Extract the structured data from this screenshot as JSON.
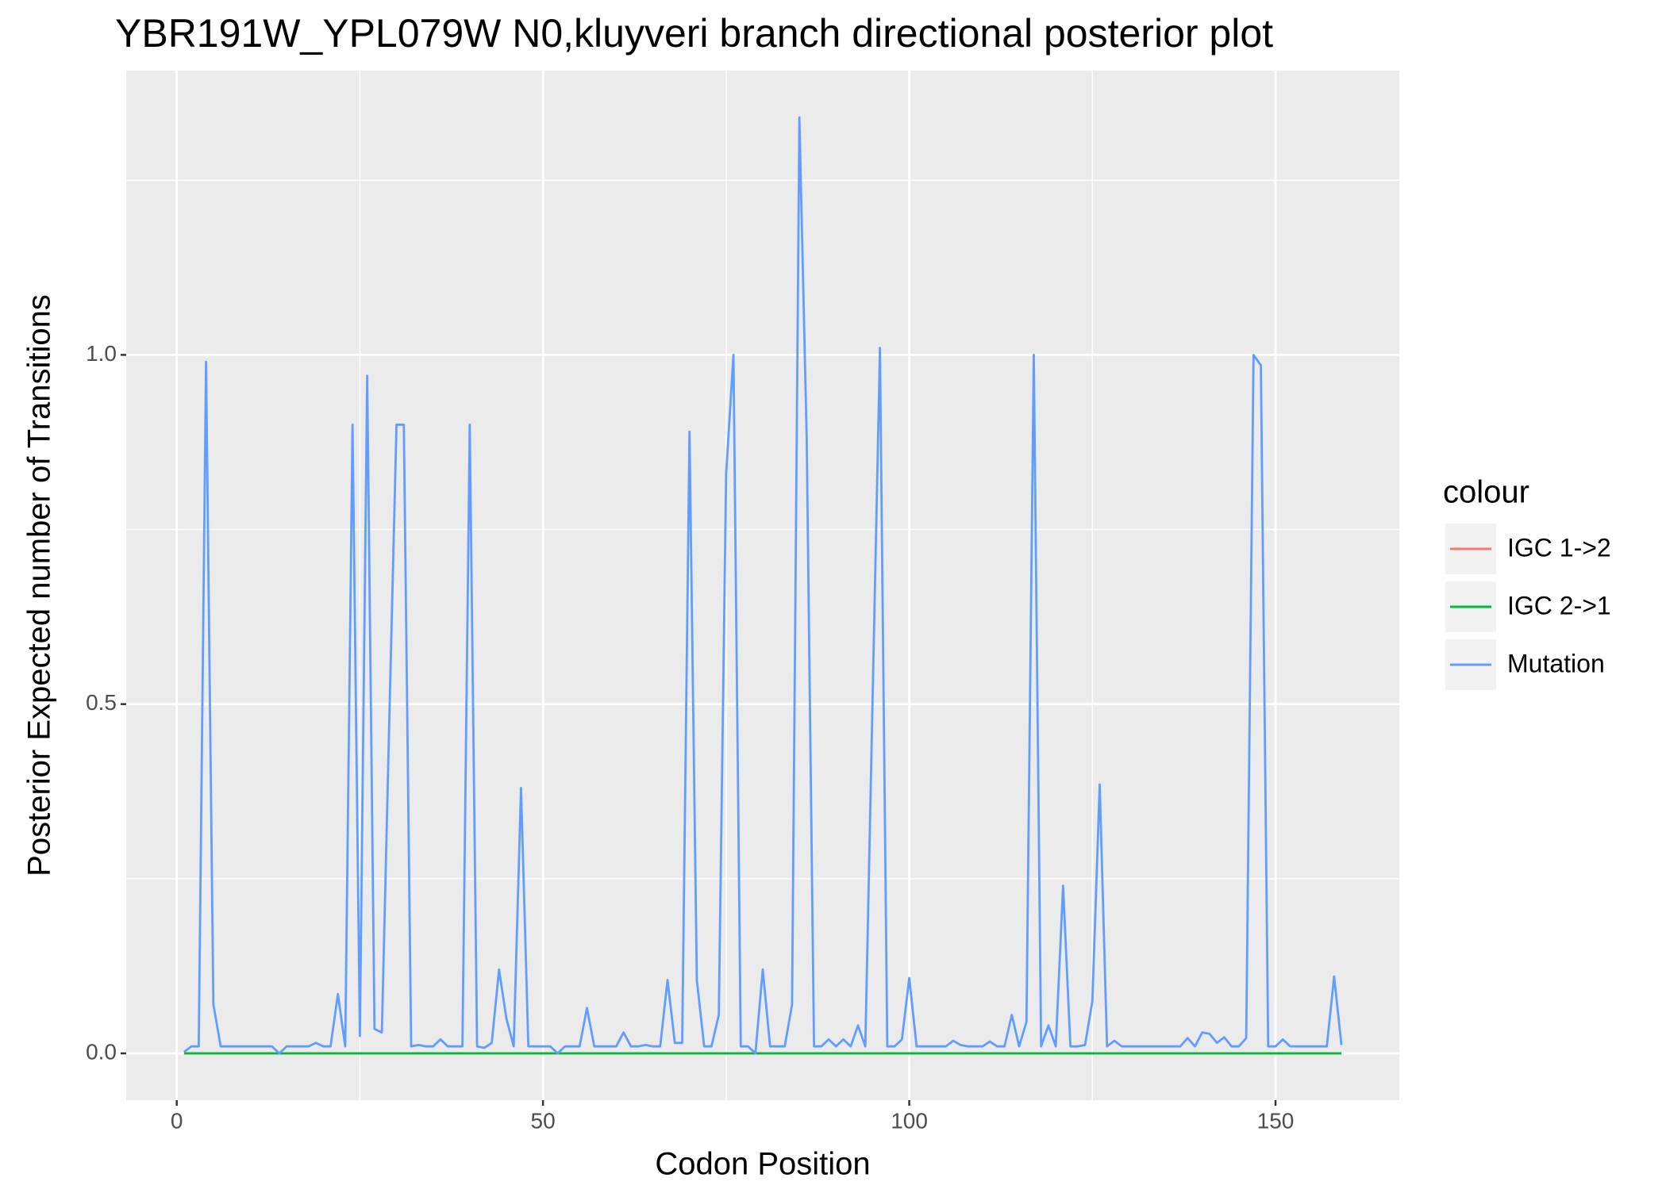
{
  "chart_data": {
    "type": "line",
    "title": "YBR191W_YPL079W N0,kluyveri branch directional posterior plot",
    "x_label": "Codon Position",
    "y_label": "Posterior Expected number of Transitions",
    "legend_title": "colour",
    "legend": "right",
    "grid": true,
    "xlim": [
      -6.9,
      166.9
    ],
    "ylim": [
      -0.067,
      1.407
    ],
    "xticks": [
      0,
      50,
      100,
      150
    ],
    "yticks": [
      {
        "value": 0,
        "label": "0.0"
      },
      {
        "value": 0.5,
        "label": "0.5"
      },
      {
        "value": 1,
        "label": "1.0"
      }
    ],
    "x": [
      1,
      2,
      3,
      4,
      5,
      6,
      7,
      8,
      9,
      10,
      11,
      12,
      13,
      14,
      15,
      16,
      17,
      18,
      19,
      20,
      21,
      22,
      23,
      24,
      25,
      26,
      27,
      28,
      29,
      30,
      31,
      32,
      33,
      34,
      35,
      36,
      37,
      38,
      39,
      40,
      41,
      42,
      43,
      44,
      45,
      46,
      47,
      48,
      49,
      50,
      51,
      52,
      53,
      54,
      55,
      56,
      57,
      58,
      59,
      60,
      61,
      62,
      63,
      64,
      65,
      66,
      67,
      68,
      69,
      70,
      71,
      72,
      73,
      74,
      75,
      76,
      77,
      78,
      79,
      80,
      81,
      82,
      83,
      84,
      85,
      86,
      87,
      88,
      89,
      90,
      91,
      92,
      93,
      94,
      95,
      96,
      97,
      98,
      99,
      100,
      101,
      102,
      103,
      104,
      105,
      106,
      107,
      108,
      109,
      110,
      111,
      112,
      113,
      114,
      115,
      116,
      117,
      118,
      119,
      120,
      121,
      122,
      123,
      124,
      125,
      126,
      127,
      128,
      129,
      130,
      131,
      132,
      133,
      134,
      135,
      136,
      137,
      138,
      139,
      140,
      141,
      142,
      143,
      144,
      145,
      146,
      147,
      148,
      149,
      150,
      151,
      152,
      153,
      154,
      155,
      156,
      157,
      158,
      159
    ],
    "series": [
      {
        "name": "IGC 1->2",
        "color": "#F8766D",
        "values": [
          0,
          0,
          0,
          0,
          0,
          0,
          0,
          0,
          0,
          0,
          0,
          0,
          0,
          0,
          0,
          0,
          0,
          0,
          0,
          0,
          0,
          0,
          0,
          0,
          0,
          0,
          0,
          0,
          0,
          0,
          0,
          0,
          0,
          0,
          0,
          0,
          0,
          0,
          0,
          0,
          0,
          0,
          0,
          0,
          0,
          0,
          0,
          0,
          0,
          0,
          0,
          0,
          0,
          0,
          0,
          0,
          0,
          0,
          0,
          0,
          0,
          0,
          0,
          0,
          0,
          0,
          0,
          0,
          0,
          0,
          0,
          0,
          0,
          0,
          0,
          0,
          0,
          0,
          0,
          0,
          0,
          0,
          0,
          0,
          0,
          0,
          0,
          0,
          0,
          0,
          0,
          0,
          0,
          0,
          0,
          0,
          0,
          0,
          0,
          0,
          0,
          0,
          0,
          0,
          0,
          0,
          0,
          0,
          0,
          0,
          0,
          0,
          0,
          0,
          0,
          0,
          0,
          0,
          0,
          0,
          0,
          0,
          0,
          0,
          0,
          0,
          0,
          0,
          0,
          0,
          0,
          0,
          0,
          0,
          0,
          0,
          0,
          0,
          0,
          0,
          0,
          0,
          0,
          0,
          0,
          0,
          0,
          0,
          0,
          0,
          0,
          0,
          0,
          0,
          0,
          0,
          0,
          0,
          0
        ]
      },
      {
        "name": "IGC 2->1",
        "color": "#00BA38",
        "values": [
          0,
          0,
          0,
          0,
          0,
          0,
          0,
          0,
          0,
          0,
          0,
          0,
          0,
          0,
          0,
          0,
          0,
          0,
          0,
          0,
          0,
          0,
          0,
          0,
          0,
          0,
          0,
          0,
          0,
          0,
          0,
          0,
          0,
          0,
          0,
          0,
          0,
          0,
          0,
          0,
          0,
          0,
          0,
          0,
          0,
          0,
          0,
          0,
          0,
          0,
          0,
          0,
          0,
          0,
          0,
          0,
          0,
          0,
          0,
          0,
          0,
          0,
          0,
          0,
          0,
          0,
          0,
          0,
          0,
          0,
          0,
          0,
          0,
          0,
          0,
          0,
          0,
          0,
          0,
          0,
          0,
          0,
          0,
          0,
          0,
          0,
          0,
          0,
          0,
          0,
          0,
          0,
          0,
          0,
          0,
          0,
          0,
          0,
          0,
          0,
          0,
          0,
          0,
          0,
          0,
          0,
          0,
          0,
          0,
          0,
          0,
          0,
          0,
          0,
          0,
          0,
          0,
          0,
          0,
          0,
          0,
          0,
          0,
          0,
          0,
          0,
          0,
          0,
          0,
          0,
          0,
          0,
          0,
          0,
          0,
          0,
          0,
          0,
          0,
          0,
          0,
          0,
          0,
          0,
          0,
          0,
          0,
          0,
          0,
          0,
          0,
          0,
          0,
          0,
          0,
          0,
          0,
          0,
          0
        ]
      },
      {
        "name": "Mutation",
        "color": "#619CFF",
        "values": [
          0.002,
          0.01,
          0.01,
          0.99,
          0.07,
          0.01,
          0.01,
          0.01,
          0.01,
          0.01,
          0.01,
          0.01,
          0.01,
          0,
          0.01,
          0.01,
          0.01,
          0.01,
          0.015,
          0.01,
          0.01,
          0.085,
          0.01,
          0.9,
          0.025,
          0.97,
          0.035,
          0.03,
          0.47,
          0.9,
          0.9,
          0.01,
          0.012,
          0.01,
          0.01,
          0.02,
          0.01,
          0.01,
          0.01,
          0.9,
          0.01,
          0.008,
          0.015,
          0.12,
          0.05,
          0.01,
          0.38,
          0.01,
          0.01,
          0.01,
          0.01,
          0,
          0.01,
          0.01,
          0.01,
          0.065,
          0.01,
          0.01,
          0.01,
          0.01,
          0.03,
          0.01,
          0.01,
          0.012,
          0.01,
          0.01,
          0.105,
          0.015,
          0.015,
          0.89,
          0.105,
          0.01,
          0.01,
          0.055,
          0.83,
          1,
          0.01,
          0.01,
          0,
          0.12,
          0.01,
          0.01,
          0.01,
          0.07,
          1.34,
          0.88,
          0.01,
          0.01,
          0.02,
          0.01,
          0.02,
          0.01,
          0.04,
          0.01,
          0.51,
          1.01,
          0.01,
          0.01,
          0.02,
          0.108,
          0.01,
          0.01,
          0.01,
          0.01,
          0.01,
          0.018,
          0.012,
          0.01,
          0.01,
          0.01,
          0.017,
          0.01,
          0.01,
          0.055,
          0.01,
          0.045,
          1,
          0.01,
          0.04,
          0.01,
          0.24,
          0.01,
          0.01,
          0.012,
          0.075,
          0.385,
          0.01,
          0.018,
          0.01,
          0.01,
          0.01,
          0.01,
          0.01,
          0.01,
          0.01,
          0.01,
          0.01,
          0.022,
          0.01,
          0.03,
          0.028,
          0.015,
          0.023,
          0.01,
          0.01,
          0.022,
          1,
          0.985,
          0.01,
          0.01,
          0.02,
          0.01,
          0.01,
          0.01,
          0.01,
          0.01,
          0.01,
          0.11,
          0.012
        ]
      }
    ]
  }
}
